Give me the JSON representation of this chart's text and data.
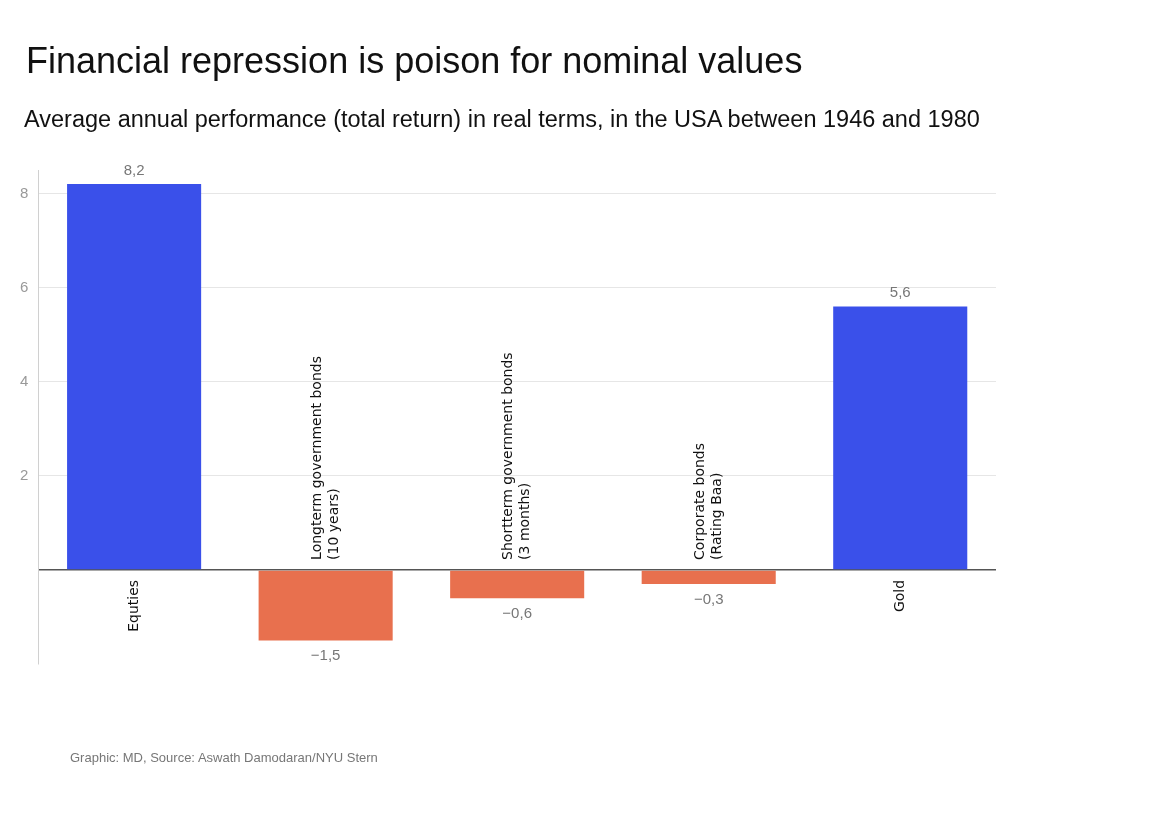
{
  "chart_data": {
    "type": "bar",
    "title": "Financial repression is poison for nominal values",
    "subtitle": "Average annual performance (total return) in real terms, in the USA between 1946 and 1980",
    "categories": [
      "Equties",
      "Longterm government bonds\n(10 years)",
      "Shortterm government bonds\n(3 months)",
      "Corporate bonds\n(Rating Baa)",
      "Gold"
    ],
    "values": [
      8.2,
      -1.5,
      -0.6,
      -0.3,
      5.6
    ],
    "colors": [
      "#3a50ea",
      "#e8704e",
      "#e8704e",
      "#e8704e",
      "#3a50ea"
    ],
    "value_labels": [
      "8,2",
      "−1,5",
      "−0,6",
      "−0,3",
      "5,6"
    ],
    "ylim": [
      -2,
      8.5
    ],
    "yticks": [
      {
        "value": 0,
        "label": null
      },
      2,
      4,
      6,
      8
    ],
    "grid": "y",
    "legend": false,
    "annotations": [
      "Graphic: MD, Source: Aswath Damodaran/NYU Stern"
    ]
  }
}
